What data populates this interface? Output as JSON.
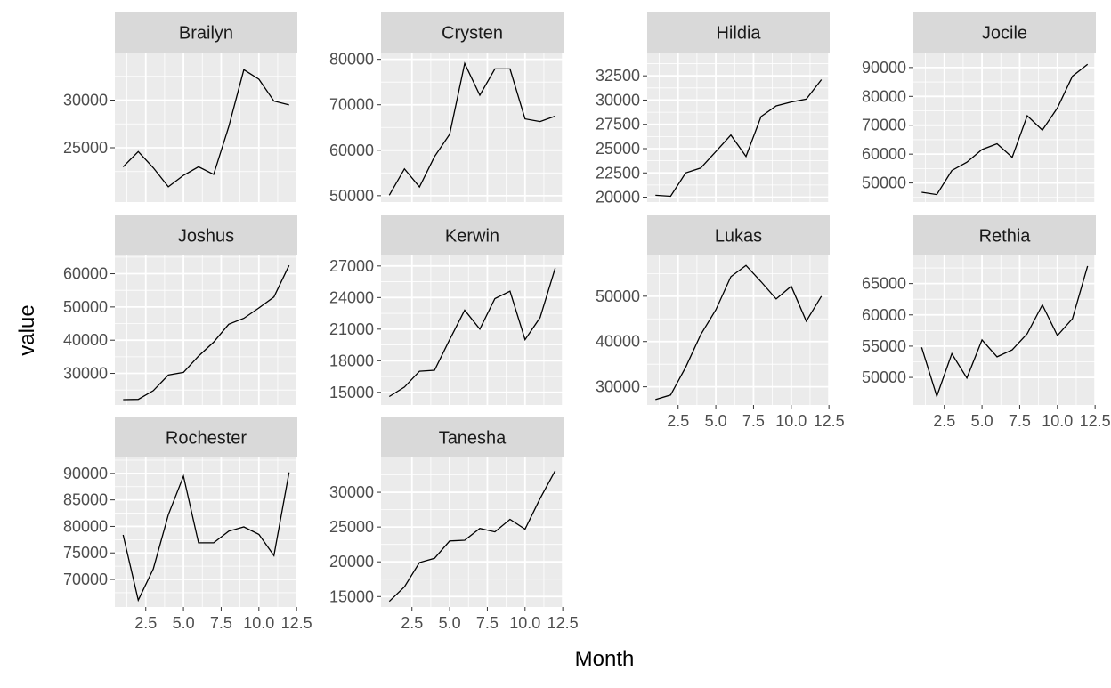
{
  "chart_data": {
    "type": "line",
    "xlabel": "Month",
    "ylabel": "value",
    "x": [
      1,
      2,
      3,
      4,
      5,
      6,
      7,
      8,
      9,
      10,
      11,
      12
    ],
    "xlim": [
      0.45,
      12.55
    ],
    "x_ticks": [
      2.5,
      5.0,
      7.5,
      10.0,
      12.5
    ],
    "x_tick_labels": [
      "2.5",
      "5.0",
      "7.5",
      "10.0",
      "12.5"
    ],
    "grid": true,
    "panel_background": "#ebebeb",
    "strip_background": "#d9d9d9",
    "line_color": "#000000",
    "facets": [
      {
        "name": "Brailyn",
        "ylim": [
          19300,
          35000
        ],
        "y_ticks": [
          25000,
          30000
        ],
        "y_tick_labels": [
          "25000",
          "30000"
        ],
        "values": [
          23000,
          24600,
          22900,
          20900,
          22100,
          23000,
          22200,
          27200,
          33200,
          32200,
          29900,
          29500
        ]
      },
      {
        "name": "Crysten",
        "ylim": [
          48600,
          81500
        ],
        "y_ticks": [
          50000,
          60000,
          70000,
          80000
        ],
        "y_tick_labels": [
          "50000",
          "60000",
          "70000",
          "80000"
        ],
        "values": [
          50100,
          55900,
          51900,
          58600,
          63500,
          79100,
          72100,
          77900,
          77900,
          66900,
          66300,
          67500
        ]
      },
      {
        "name": "Hildia",
        "ylim": [
          19500,
          34900
        ],
        "y_ticks": [
          20000,
          22500,
          25000,
          27500,
          30000,
          32500
        ],
        "y_tick_labels": [
          "20000",
          "22500",
          "25000",
          "27500",
          "30000",
          "32500"
        ],
        "values": [
          20200,
          20100,
          22500,
          23000,
          24700,
          26400,
          24200,
          28300,
          29400,
          29800,
          30100,
          32100
        ]
      },
      {
        "name": "Jocile",
        "ylim": [
          43400,
          95200
        ],
        "y_ticks": [
          50000,
          60000,
          70000,
          80000,
          90000
        ],
        "y_tick_labels": [
          "50000",
          "60000",
          "70000",
          "80000",
          "90000"
        ],
        "values": [
          46800,
          46000,
          54300,
          57200,
          61600,
          63600,
          58900,
          73300,
          68300,
          76000,
          87000,
          91100
        ]
      },
      {
        "name": "Joshus",
        "ylim": [
          20500,
          65500
        ],
        "y_ticks": [
          30000,
          40000,
          50000,
          60000
        ],
        "y_tick_labels": [
          "30000",
          "40000",
          "50000",
          "60000"
        ],
        "values": [
          22100,
          22200,
          24800,
          29500,
          30300,
          35200,
          39400,
          44800,
          46600,
          49700,
          53000,
          62500
        ]
      },
      {
        "name": "Kerwin",
        "ylim": [
          13800,
          28000
        ],
        "y_ticks": [
          15000,
          18000,
          21000,
          24000,
          27000
        ],
        "y_tick_labels": [
          "15000",
          "18000",
          "21000",
          "24000",
          "27000"
        ],
        "values": [
          14600,
          15500,
          17000,
          17100,
          20000,
          22800,
          21000,
          23900,
          24600,
          20000,
          22100,
          26800
        ]
      },
      {
        "name": "Lukas",
        "ylim": [
          26000,
          59000
        ],
        "y_ticks": [
          30000,
          40000,
          50000
        ],
        "y_tick_labels": [
          "30000",
          "40000",
          "50000"
        ],
        "values": [
          27200,
          28200,
          34300,
          41500,
          47000,
          54300,
          56800,
          53200,
          49400,
          52200,
          44500,
          50000
        ]
      },
      {
        "name": "Rethia",
        "ylim": [
          45600,
          69500
        ],
        "y_ticks": [
          50000,
          55000,
          60000,
          65000
        ],
        "y_tick_labels": [
          "50000",
          "55000",
          "60000",
          "65000"
        ],
        "values": [
          54800,
          47000,
          53800,
          49900,
          56000,
          53300,
          54400,
          57000,
          61600,
          56700,
          59400,
          67800
        ]
      },
      {
        "name": "Rochester",
        "ylim": [
          64800,
          93000
        ],
        "y_ticks": [
          70000,
          75000,
          80000,
          85000,
          90000
        ],
        "y_tick_labels": [
          "70000",
          "75000",
          "80000",
          "85000",
          "90000"
        ],
        "values": [
          78400,
          66100,
          72000,
          82200,
          89500,
          76900,
          76900,
          79100,
          79900,
          78500,
          74500,
          90200
        ]
      },
      {
        "name": "Tanesha",
        "ylim": [
          13500,
          35000
        ],
        "y_ticks": [
          15000,
          20000,
          25000,
          30000
        ],
        "y_tick_labels": [
          "15000",
          "20000",
          "25000",
          "30000"
        ],
        "values": [
          14300,
          16400,
          19900,
          20500,
          23000,
          23100,
          24800,
          24300,
          26100,
          24700,
          29100,
          33100
        ]
      }
    ]
  }
}
